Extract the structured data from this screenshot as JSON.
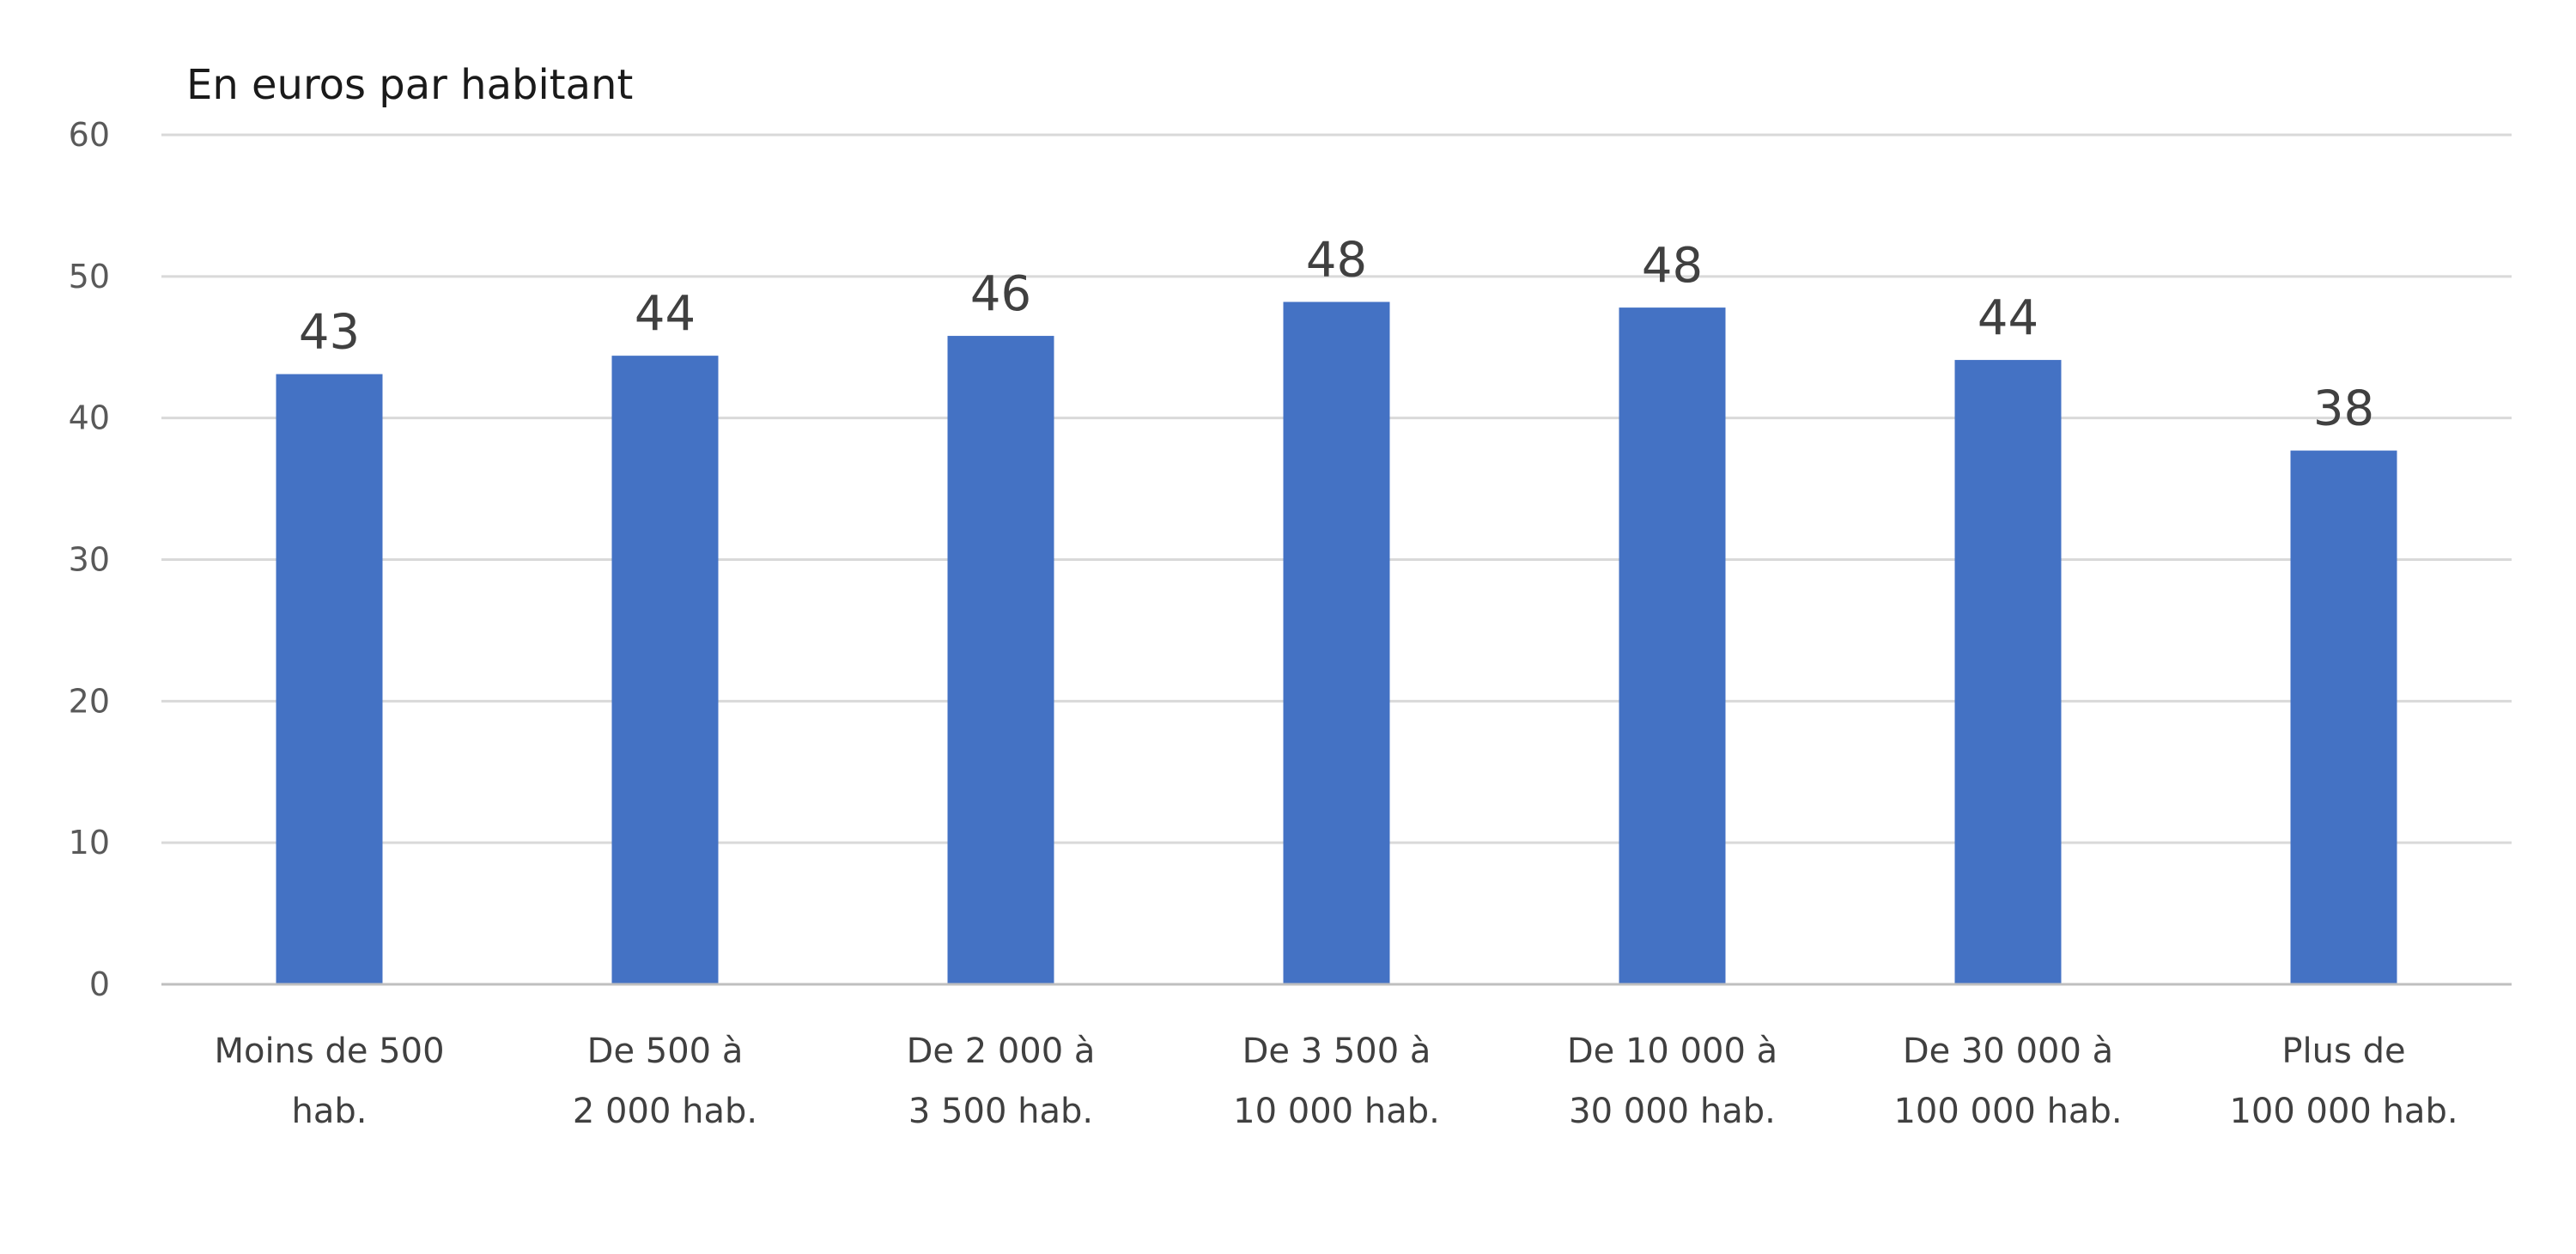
{
  "chart_data": {
    "type": "bar",
    "title": "",
    "unit_label": "En euros par habitant",
    "xlabel": "",
    "ylabel": "",
    "categories": [
      [
        "Moins de 500",
        "hab."
      ],
      [
        "De 500 à",
        "2 000 hab."
      ],
      [
        "De 2 000 à",
        "3 500 hab."
      ],
      [
        "De 3 500 à",
        "10 000 hab."
      ],
      [
        "De 10 000 à",
        "30 000 hab."
      ],
      [
        "De 30 000 à",
        "100 000 hab."
      ],
      [
        "Plus de",
        "100 000 hab."
      ]
    ],
    "values": [
      43.1,
      44.4,
      45.8,
      48.2,
      47.8,
      44.1,
      37.7
    ],
    "data_labels": [
      "43",
      "44",
      "46",
      "48",
      "48",
      "44",
      "38"
    ],
    "ylim": [
      0,
      60
    ],
    "yticks": [
      0,
      10,
      20,
      30,
      40,
      50,
      60
    ],
    "grid": true,
    "legend": "none",
    "colors": {
      "bar": "#4472C4"
    }
  }
}
